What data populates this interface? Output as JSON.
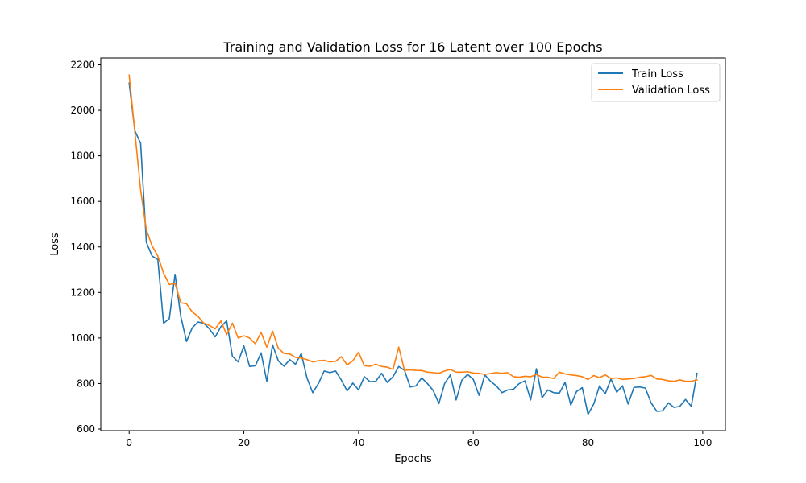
{
  "chart_data": {
    "type": "line",
    "title": "Training and Validation Loss for 16 Latent over 100 Epochs",
    "xlabel": "Epochs",
    "ylabel": "Loss",
    "xlim": [
      -4.95,
      103.95
    ],
    "ylim": [
      593,
      2230
    ],
    "xticks": [
      0,
      20,
      40,
      60,
      80,
      100
    ],
    "yticks": [
      600,
      800,
      1000,
      1200,
      1400,
      1600,
      1800,
      2000,
      2200
    ],
    "grid": false,
    "legend_position": "top-right",
    "x": [
      0,
      1,
      2,
      3,
      4,
      5,
      6,
      7,
      8,
      9,
      10,
      11,
      12,
      13,
      14,
      15,
      16,
      17,
      18,
      19,
      20,
      21,
      22,
      23,
      24,
      25,
      26,
      27,
      28,
      29,
      30,
      31,
      32,
      33,
      34,
      35,
      36,
      37,
      38,
      39,
      40,
      41,
      42,
      43,
      44,
      45,
      46,
      47,
      48,
      49,
      50,
      51,
      52,
      53,
      54,
      55,
      56,
      57,
      58,
      59,
      60,
      61,
      62,
      63,
      64,
      65,
      66,
      67,
      68,
      69,
      70,
      71,
      72,
      73,
      74,
      75,
      76,
      77,
      78,
      79,
      80,
      81,
      82,
      83,
      84,
      85,
      86,
      87,
      88,
      89,
      90,
      91,
      92,
      93,
      94,
      95,
      96,
      97,
      98,
      99
    ],
    "series": [
      {
        "name": "Train Loss",
        "color": "#1f77b4",
        "values": [
          2120,
          1910,
          1855,
          1420,
          1360,
          1345,
          1065,
          1085,
          1280,
          1095,
          985,
          1045,
          1070,
          1065,
          1040,
          1005,
          1050,
          1075,
          920,
          895,
          965,
          875,
          878,
          935,
          810,
          970,
          900,
          876,
          905,
          885,
          932,
          825,
          760,
          800,
          855,
          848,
          855,
          815,
          768,
          802,
          772,
          830,
          808,
          810,
          845,
          805,
          830,
          875,
          858,
          785,
          790,
          825,
          800,
          770,
          712,
          800,
          838,
          728,
          815,
          840,
          818,
          748,
          838,
          810,
          790,
          760,
          772,
          775,
          800,
          812,
          728,
          865,
          738,
          772,
          760,
          758,
          805,
          705,
          765,
          782,
          665,
          710,
          790,
          755,
          820,
          762,
          790,
          710,
          783,
          785,
          780,
          715,
          678,
          680,
          715,
          695,
          700,
          730,
          700,
          845
        ]
      },
      {
        "name": "Validation Loss",
        "color": "#ff7f0e",
        "values": [
          2155,
          1905,
          1650,
          1475,
          1405,
          1360,
          1285,
          1235,
          1240,
          1155,
          1150,
          1115,
          1095,
          1065,
          1055,
          1040,
          1075,
          1015,
          1065,
          1000,
          1010,
          1000,
          975,
          1025,
          960,
          1030,
          955,
          932,
          930,
          915,
          912,
          905,
          895,
          900,
          902,
          895,
          898,
          918,
          882,
          900,
          938,
          878,
          876,
          885,
          875,
          872,
          862,
          960,
          858,
          860,
          858,
          857,
          850,
          848,
          845,
          855,
          862,
          850,
          850,
          852,
          846,
          845,
          840,
          844,
          848,
          845,
          848,
          830,
          828,
          832,
          830,
          840,
          828,
          828,
          822,
          850,
          842,
          838,
          835,
          830,
          818,
          835,
          826,
          838,
          822,
          825,
          818,
          820,
          822,
          828,
          830,
          836,
          820,
          818,
          812,
          810,
          816,
          810,
          810,
          816
        ]
      }
    ]
  }
}
